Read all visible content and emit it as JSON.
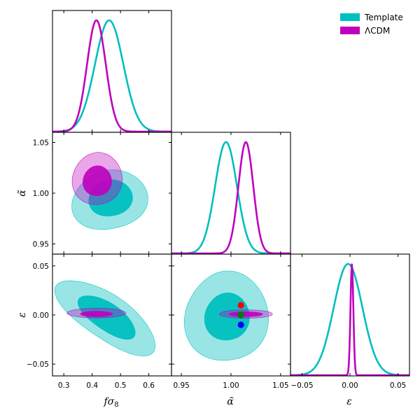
{
  "legend": [
    {
      "label": "Template",
      "color": "#00bfbf"
    },
    {
      "label": "ΛCDM",
      "color": "#bf00bf"
    }
  ],
  "chart_data": {
    "type": "triangle",
    "parameters": [
      "fσ8",
      "α̃",
      "ε"
    ],
    "axis_labels": {
      "fs8": {
        "prefix": "fσ",
        "sub": "8"
      },
      "alpha": "α̃",
      "eps": "ε"
    },
    "ranges": {
      "fs8": [
        0.26,
        0.68
      ],
      "alpha": [
        0.94,
        1.06
      ],
      "eps": [
        -0.062,
        0.062
      ]
    },
    "ticks": {
      "fs8": [
        0.3,
        0.4,
        0.5,
        0.6
      ],
      "fs8_labels": [
        "0.3",
        "0.4",
        "0.5",
        "0.6"
      ],
      "alpha_x": [
        0.95,
        1.0,
        1.05
      ],
      "alpha_x_labels": [
        "0.95",
        "1.00",
        "1.05"
      ],
      "alpha_y": [
        0.95,
        1.0,
        1.05
      ],
      "alpha_y_labels": [
        "0.95",
        "1.00",
        "1.05"
      ],
      "eps_x": [
        -0.05,
        0.0,
        0.05
      ],
      "eps_x_labels": [
        "−0.05",
        "0.00",
        "0.05"
      ],
      "eps_y": [
        -0.05,
        0.0,
        0.05
      ],
      "eps_y_labels": [
        "−0.05",
        "0.00",
        "0.05"
      ]
    },
    "series": [
      {
        "name": "Template",
        "color": "#00bfbf",
        "fs8": {
          "mean": 0.46,
          "sigma": 0.05
        },
        "alpha": {
          "mean": 0.995,
          "sigma": 0.011
        },
        "eps": {
          "mean": -0.002,
          "sigma": 0.015
        }
      },
      {
        "name": "ΛCDM",
        "color": "#bf00bf",
        "fs8": {
          "mean": 0.415,
          "sigma": 0.033
        },
        "alpha": {
          "mean": 1.015,
          "sigma": 0.0075
        },
        "eps": {
          "mean": 0.002,
          "sigma": 0.0015
        }
      }
    ],
    "markers": [
      {
        "alpha": 1.01,
        "eps": 0.01,
        "color": "#ff0000"
      },
      {
        "alpha": 1.01,
        "eps": 0.0,
        "color": "#008000"
      },
      {
        "alpha": 1.01,
        "eps": -0.01,
        "color": "#0000ff"
      }
    ]
  }
}
